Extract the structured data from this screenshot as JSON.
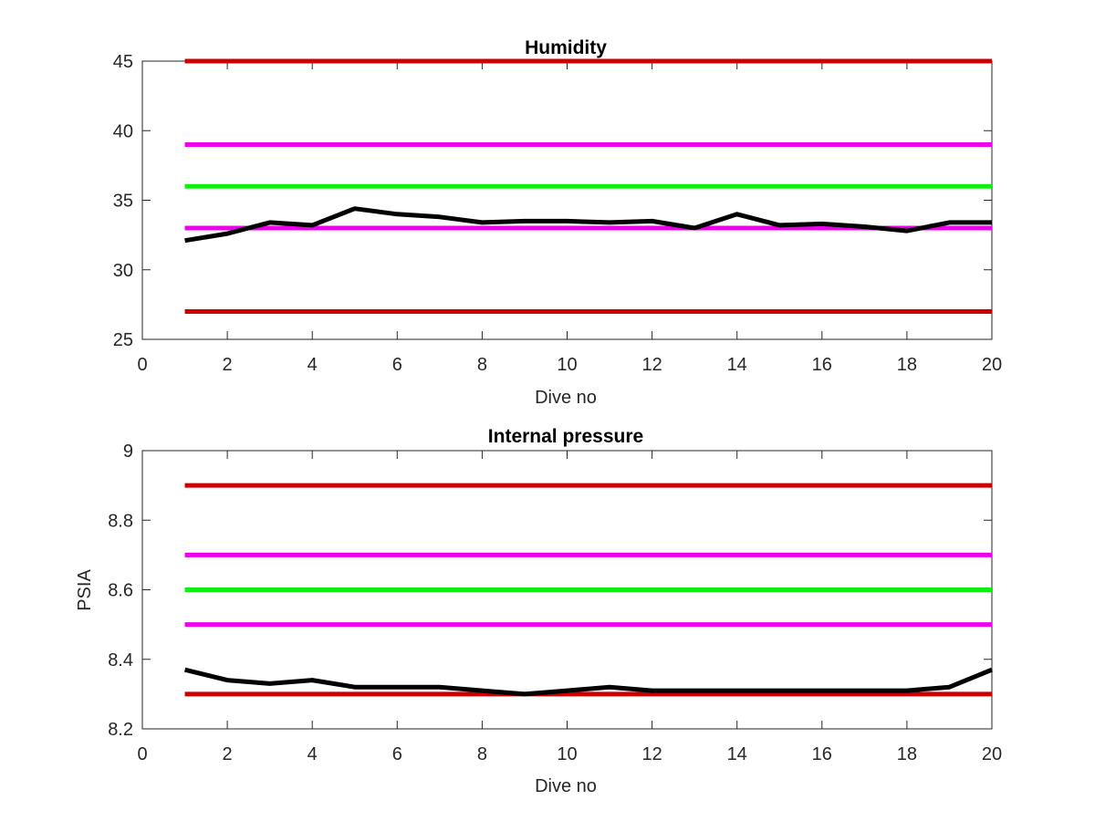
{
  "chart_data": [
    {
      "type": "line",
      "title": "Humidity",
      "xlabel": "Dive no",
      "ylabel": "",
      "xlim": [
        0,
        20
      ],
      "ylim": [
        25,
        45
      ],
      "xticks": [
        "0",
        "2",
        "4",
        "6",
        "8",
        "10",
        "12",
        "14",
        "16",
        "18",
        "20"
      ],
      "yticks": [
        "25",
        "30",
        "35",
        "40",
        "45"
      ],
      "grid": false,
      "hlines": [
        {
          "y": 45,
          "x": [
            1,
            20
          ],
          "color": "#cc0000"
        },
        {
          "y": 39,
          "x": [
            1,
            20
          ],
          "color": "#ee00ee"
        },
        {
          "y": 36,
          "x": [
            1,
            20
          ],
          "color": "#11ee11"
        },
        {
          "y": 33,
          "x": [
            1,
            20
          ],
          "color": "#ee00ee"
        },
        {
          "y": 27,
          "x": [
            1,
            20
          ],
          "color": "#cc0000"
        }
      ],
      "series": [
        {
          "color": "#000000",
          "x": [
            1,
            2,
            3,
            4,
            5,
            6,
            7,
            8,
            9,
            10,
            11,
            12,
            13,
            14,
            15,
            16,
            17,
            18,
            19,
            20
          ],
          "values": [
            32.1,
            32.6,
            33.4,
            33.2,
            34.4,
            34.0,
            33.8,
            33.4,
            33.5,
            33.5,
            33.4,
            33.5,
            33.0,
            34.0,
            33.2,
            33.3,
            33.1,
            32.8,
            33.4,
            33.4
          ]
        }
      ]
    },
    {
      "type": "line",
      "title": "Internal pressure",
      "xlabel": "Dive no",
      "ylabel": "PSIA",
      "xlim": [
        0,
        20
      ],
      "ylim": [
        8.2,
        9
      ],
      "xticks": [
        "0",
        "2",
        "4",
        "6",
        "8",
        "10",
        "12",
        "14",
        "16",
        "18",
        "20"
      ],
      "yticks": [
        "8.2",
        "8.4",
        "8.6",
        "8.8",
        "9"
      ],
      "grid": false,
      "hlines": [
        {
          "y": 8.9,
          "x": [
            1,
            20
          ],
          "color": "#cc0000"
        },
        {
          "y": 8.7,
          "x": [
            1,
            20
          ],
          "color": "#ee00ee"
        },
        {
          "y": 8.6,
          "x": [
            1,
            20
          ],
          "color": "#11ee11"
        },
        {
          "y": 8.5,
          "x": [
            1,
            20
          ],
          "color": "#ee00ee"
        },
        {
          "y": 8.3,
          "x": [
            1,
            20
          ],
          "color": "#cc0000"
        }
      ],
      "series": [
        {
          "color": "#000000",
          "x": [
            1,
            2,
            3,
            4,
            5,
            6,
            7,
            8,
            9,
            10,
            11,
            12,
            13,
            14,
            15,
            16,
            17,
            18,
            19,
            20
          ],
          "values": [
            8.37,
            8.34,
            8.33,
            8.34,
            8.32,
            8.32,
            8.32,
            8.31,
            8.3,
            8.31,
            8.32,
            8.31,
            8.31,
            8.31,
            8.31,
            8.31,
            8.31,
            8.31,
            8.32,
            8.37
          ]
        }
      ]
    }
  ]
}
